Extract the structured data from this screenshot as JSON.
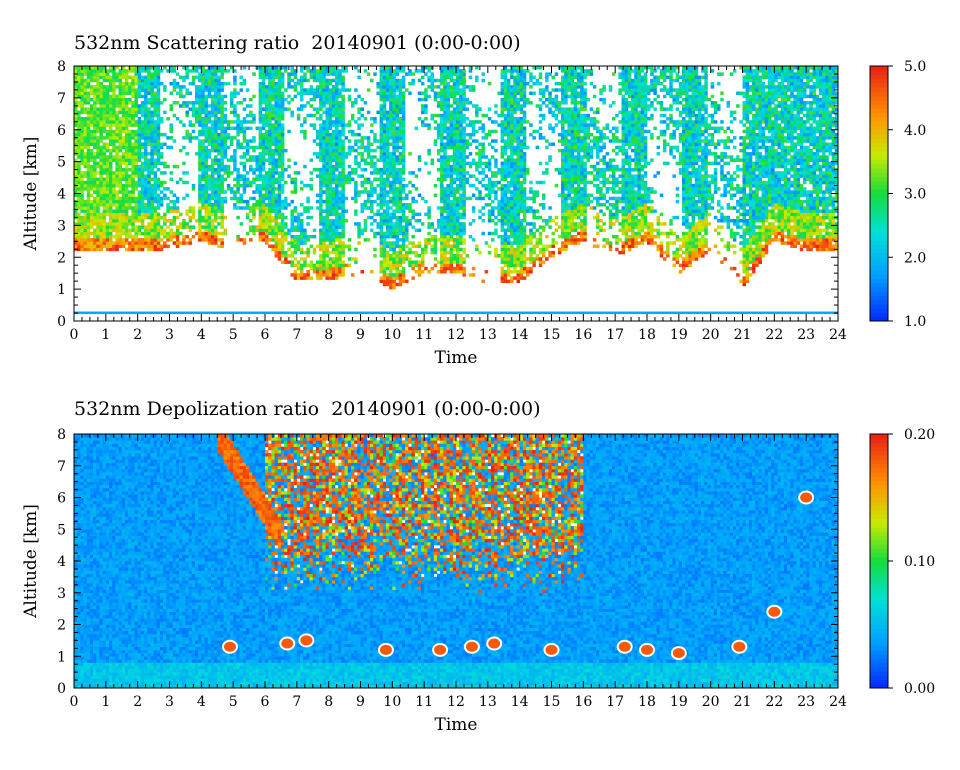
{
  "charts": [
    {
      "title": "532nm Scattering ratio  20140901 (0:00-0:00)",
      "xlabel": "Time",
      "ylabel": "Altitude [km]",
      "colorbar_labels": [
        "5.0",
        "4.0",
        "3.0",
        "2.0",
        "1.0"
      ]
    },
    {
      "title": "532nm Depolization ratio  20140901 (0:00-0:00)",
      "xlabel": "Time",
      "ylabel": "Altitude [km]",
      "colorbar_labels": [
        "0.20",
        "0.10",
        "0.00"
      ]
    }
  ],
  "chart_data": [
    {
      "type": "heatmap",
      "title": "532nm Scattering ratio  20140901 (0:00-0:00)",
      "xlabel": "Time",
      "ylabel": "Altitude [km]",
      "xlim": [
        0,
        24
      ],
      "ylim": [
        0,
        8
      ],
      "x_ticks": [
        "0",
        "1",
        "2",
        "3",
        "4",
        "5",
        "6",
        "7",
        "8",
        "9",
        "10",
        "11",
        "12",
        "13",
        "14",
        "15",
        "16",
        "17",
        "18",
        "19",
        "20",
        "21",
        "22",
        "23",
        "24"
      ],
      "y_ticks": [
        "0",
        "1",
        "2",
        "3",
        "4",
        "5",
        "6",
        "7",
        "8"
      ],
      "colorbar": {
        "min": 1.0,
        "max": 5.0,
        "ticks": [
          "1.0",
          "2.0",
          "3.0",
          "4.0",
          "5.0"
        ]
      },
      "cloud_base_km": [
        [
          0,
          2.2
        ],
        [
          1,
          2.2
        ],
        [
          2,
          2.2
        ],
        [
          2.5,
          2.2
        ],
        [
          3,
          2.3
        ],
        [
          4,
          2.5
        ],
        [
          5,
          2.2
        ],
        [
          6,
          2.5
        ],
        [
          7,
          1.2
        ],
        [
          8,
          1.3
        ],
        [
          9,
          1.5
        ],
        [
          10,
          1.0
        ],
        [
          11,
          1.5
        ],
        [
          12,
          1.5
        ],
        [
          13,
          1.2
        ],
        [
          14,
          1.2
        ],
        [
          15,
          2.0
        ],
        [
          16,
          2.5
        ],
        [
          17,
          2.0
        ],
        [
          18,
          2.5
        ],
        [
          19,
          1.5
        ],
        [
          20,
          2.2
        ],
        [
          21,
          1.0
        ],
        [
          22,
          2.5
        ],
        [
          23,
          2.2
        ],
        [
          24,
          2.2
        ]
      ],
      "low_layer_km": 0.25
    },
    {
      "type": "heatmap",
      "title": "532nm Depolization ratio  20140901 (0:00-0:00)",
      "xlabel": "Time",
      "ylabel": "Altitude [km]",
      "xlim": [
        0,
        24
      ],
      "ylim": [
        0,
        8
      ],
      "x_ticks": [
        "0",
        "1",
        "2",
        "3",
        "4",
        "5",
        "6",
        "7",
        "8",
        "9",
        "10",
        "11",
        "12",
        "13",
        "14",
        "15",
        "16",
        "17",
        "18",
        "19",
        "20",
        "21",
        "22",
        "23",
        "24"
      ],
      "y_ticks": [
        "0",
        "1",
        "2",
        "3",
        "4",
        "5",
        "6",
        "7",
        "8"
      ],
      "colorbar": {
        "min": 0.0,
        "max": 0.2,
        "ticks": [
          "0.00",
          "0.10",
          "0.20"
        ]
      },
      "high_depol_region": {
        "time_range": [
          6,
          16
        ],
        "altitude_range": [
          3,
          8
        ]
      },
      "low_level_depol_spots": [
        [
          4.9,
          1.3
        ],
        [
          6.7,
          1.4
        ],
        [
          7.3,
          1.5
        ],
        [
          9.8,
          1.2
        ],
        [
          11.5,
          1.2
        ],
        [
          12.5,
          1.3
        ],
        [
          13.2,
          1.4
        ],
        [
          15.0,
          1.2
        ],
        [
          17.3,
          1.3
        ],
        [
          18.0,
          1.2
        ],
        [
          19.0,
          1.1
        ],
        [
          20.9,
          1.3
        ],
        [
          22.0,
          2.4
        ],
        [
          23.0,
          6.0
        ]
      ]
    }
  ]
}
